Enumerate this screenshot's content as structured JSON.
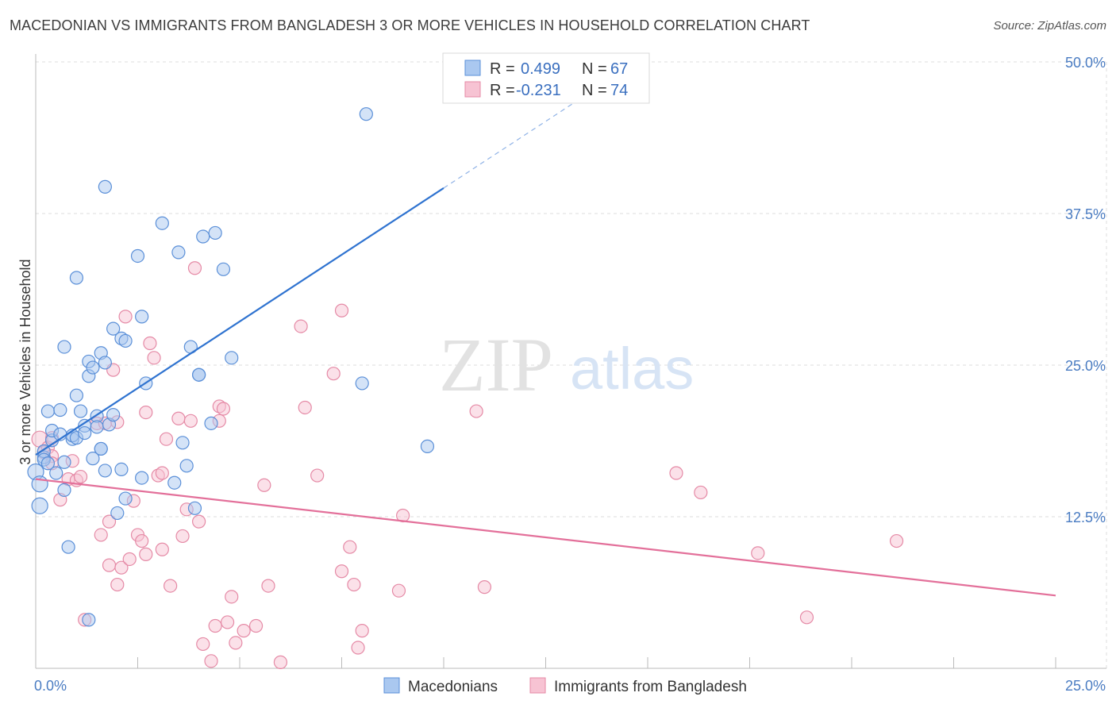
{
  "title": "MACEDONIAN VS IMMIGRANTS FROM BANGLADESH 3 OR MORE VEHICLES IN HOUSEHOLD CORRELATION CHART",
  "source": "Source: ZipAtlas.com",
  "watermark": {
    "zip": "ZIP",
    "atlas": "atlas"
  },
  "colors": {
    "blue_fill": "#aac8f0",
    "blue_stroke": "#5a8fd8",
    "blue_line": "#2f73d0",
    "pink_fill": "#f7c3d3",
    "pink_stroke": "#e58aa6",
    "pink_line": "#e3709a",
    "grid": "#dcdcdc",
    "axis_text": "#4a7cc2"
  },
  "legend": {
    "rows": [
      {
        "r_label": "R =",
        "r_value": "0.499",
        "n_label": "N =",
        "n_value": "67",
        "series": "blue"
      },
      {
        "r_label": "R =",
        "r_value": "-0.231",
        "n_label": "N =",
        "n_value": "74",
        "series": "pink"
      }
    ]
  },
  "chart_data": {
    "type": "scatter",
    "title": "MACEDONIAN VS IMMIGRANTS FROM BANGLADESH 3 OR MORE VEHICLES IN HOUSEHOLD CORRELATION CHART",
    "xlabel": "",
    "ylabel": "3 or more Vehicles in Household",
    "xlim": [
      0,
      25
    ],
    "ylim": [
      0,
      50
    ],
    "x_tick_labels": [
      "0.0%",
      "25.0%"
    ],
    "y_tick_labels": [
      "12.5%",
      "25.0%",
      "37.5%",
      "50.0%"
    ],
    "y_ticks": [
      12.5,
      25.0,
      37.5,
      50.0
    ],
    "grid": true,
    "legend_position": "top-center",
    "series": [
      {
        "name": "Macedonians",
        "color": "blue",
        "trend": {
          "x0": 0.0,
          "y0": 17.6,
          "x1": 10.0,
          "y1": 39.6,
          "dash_to_x": 13.5,
          "dash_to_y": 47.3
        },
        "points": [
          [
            0.0,
            16.2
          ],
          [
            0.1,
            15.2
          ],
          [
            0.1,
            13.4
          ],
          [
            0.2,
            17.4
          ],
          [
            0.2,
            17.9
          ],
          [
            0.2,
            17.2
          ],
          [
            0.3,
            16.9
          ],
          [
            0.3,
            21.2
          ],
          [
            0.4,
            18.8
          ],
          [
            0.4,
            19.6
          ],
          [
            0.5,
            16.1
          ],
          [
            0.6,
            19.3
          ],
          [
            0.6,
            21.3
          ],
          [
            0.7,
            26.5
          ],
          [
            0.7,
            17.0
          ],
          [
            0.7,
            14.7
          ],
          [
            0.8,
            10.0
          ],
          [
            0.9,
            18.9
          ],
          [
            0.9,
            19.2
          ],
          [
            1.0,
            22.5
          ],
          [
            1.0,
            19.0
          ],
          [
            1.0,
            32.2
          ],
          [
            1.1,
            21.2
          ],
          [
            1.2,
            20.0
          ],
          [
            1.2,
            19.4
          ],
          [
            1.3,
            25.3
          ],
          [
            1.3,
            24.1
          ],
          [
            1.3,
            4.0
          ],
          [
            1.4,
            17.3
          ],
          [
            1.4,
            24.8
          ],
          [
            1.5,
            20.8
          ],
          [
            1.5,
            19.9
          ],
          [
            1.6,
            18.1
          ],
          [
            1.6,
            18.1
          ],
          [
            1.6,
            26.0
          ],
          [
            1.7,
            25.2
          ],
          [
            1.7,
            16.3
          ],
          [
            1.7,
            39.7
          ],
          [
            1.8,
            20.1
          ],
          [
            1.9,
            20.9
          ],
          [
            1.9,
            28.0
          ],
          [
            2.0,
            12.8
          ],
          [
            2.1,
            27.2
          ],
          [
            2.1,
            16.4
          ],
          [
            2.2,
            27.0
          ],
          [
            2.2,
            14.0
          ],
          [
            2.5,
            34.0
          ],
          [
            2.6,
            15.7
          ],
          [
            2.6,
            29.0
          ],
          [
            2.7,
            23.5
          ],
          [
            3.1,
            36.7
          ],
          [
            3.4,
            15.3
          ],
          [
            3.5,
            34.3
          ],
          [
            3.6,
            18.6
          ],
          [
            3.7,
            16.7
          ],
          [
            3.8,
            26.5
          ],
          [
            3.9,
            13.2
          ],
          [
            4.0,
            24.2
          ],
          [
            4.0,
            24.2
          ],
          [
            4.1,
            35.6
          ],
          [
            4.3,
            20.2
          ],
          [
            4.4,
            35.9
          ],
          [
            4.6,
            32.9
          ],
          [
            4.8,
            25.6
          ],
          [
            8.0,
            23.5
          ],
          [
            8.1,
            45.7
          ],
          [
            9.6,
            18.3
          ]
        ]
      },
      {
        "name": "Immigrants from Bangladesh",
        "color": "pink",
        "trend": {
          "x0": 0.0,
          "y0": 15.6,
          "x1": 25.0,
          "y1": 6.0
        },
        "points": [
          [
            0.1,
            18.9
          ],
          [
            0.2,
            17.8
          ],
          [
            0.3,
            18.2
          ],
          [
            0.4,
            19.0
          ],
          [
            0.4,
            17.5
          ],
          [
            0.4,
            16.9
          ],
          [
            0.6,
            13.9
          ],
          [
            0.8,
            15.6
          ],
          [
            0.9,
            17.1
          ],
          [
            1.0,
            15.5
          ],
          [
            1.1,
            15.8
          ],
          [
            1.2,
            4.0
          ],
          [
            1.5,
            20.2
          ],
          [
            1.6,
            11.0
          ],
          [
            1.7,
            20.2
          ],
          [
            1.8,
            12.1
          ],
          [
            1.8,
            8.5
          ],
          [
            1.9,
            24.6
          ],
          [
            2.0,
            6.9
          ],
          [
            2.0,
            20.3
          ],
          [
            2.1,
            8.3
          ],
          [
            2.2,
            29.0
          ],
          [
            2.3,
            9.0
          ],
          [
            2.4,
            13.8
          ],
          [
            2.5,
            11.0
          ],
          [
            2.6,
            10.5
          ],
          [
            2.7,
            9.4
          ],
          [
            2.7,
            21.1
          ],
          [
            2.8,
            26.8
          ],
          [
            2.9,
            25.6
          ],
          [
            3.0,
            15.9
          ],
          [
            3.1,
            9.8
          ],
          [
            3.1,
            16.1
          ],
          [
            3.2,
            18.9
          ],
          [
            3.3,
            6.8
          ],
          [
            3.5,
            20.6
          ],
          [
            3.6,
            10.9
          ],
          [
            3.7,
            13.1
          ],
          [
            3.8,
            20.4
          ],
          [
            3.9,
            33.0
          ],
          [
            4.0,
            12.1
          ],
          [
            4.1,
            2.0
          ],
          [
            4.3,
            0.6
          ],
          [
            4.4,
            3.5
          ],
          [
            4.5,
            20.4
          ],
          [
            4.5,
            21.6
          ],
          [
            4.6,
            21.4
          ],
          [
            4.7,
            3.8
          ],
          [
            4.8,
            5.9
          ],
          [
            4.9,
            2.1
          ],
          [
            5.1,
            3.1
          ],
          [
            5.4,
            3.5
          ],
          [
            5.6,
            15.1
          ],
          [
            5.7,
            6.8
          ],
          [
            6.0,
            0.5
          ],
          [
            6.5,
            28.2
          ],
          [
            6.6,
            21.5
          ],
          [
            6.9,
            15.9
          ],
          [
            7.3,
            24.3
          ],
          [
            7.5,
            8.0
          ],
          [
            7.5,
            29.5
          ],
          [
            7.7,
            10.0
          ],
          [
            7.8,
            6.9
          ],
          [
            7.9,
            1.7
          ],
          [
            8.0,
            3.1
          ],
          [
            8.9,
            6.4
          ],
          [
            9.0,
            12.6
          ],
          [
            10.8,
            21.2
          ],
          [
            11.0,
            6.7
          ],
          [
            15.7,
            16.1
          ],
          [
            16.3,
            14.5
          ],
          [
            17.7,
            9.5
          ],
          [
            18.9,
            4.2
          ],
          [
            21.1,
            10.5
          ]
        ]
      }
    ]
  }
}
